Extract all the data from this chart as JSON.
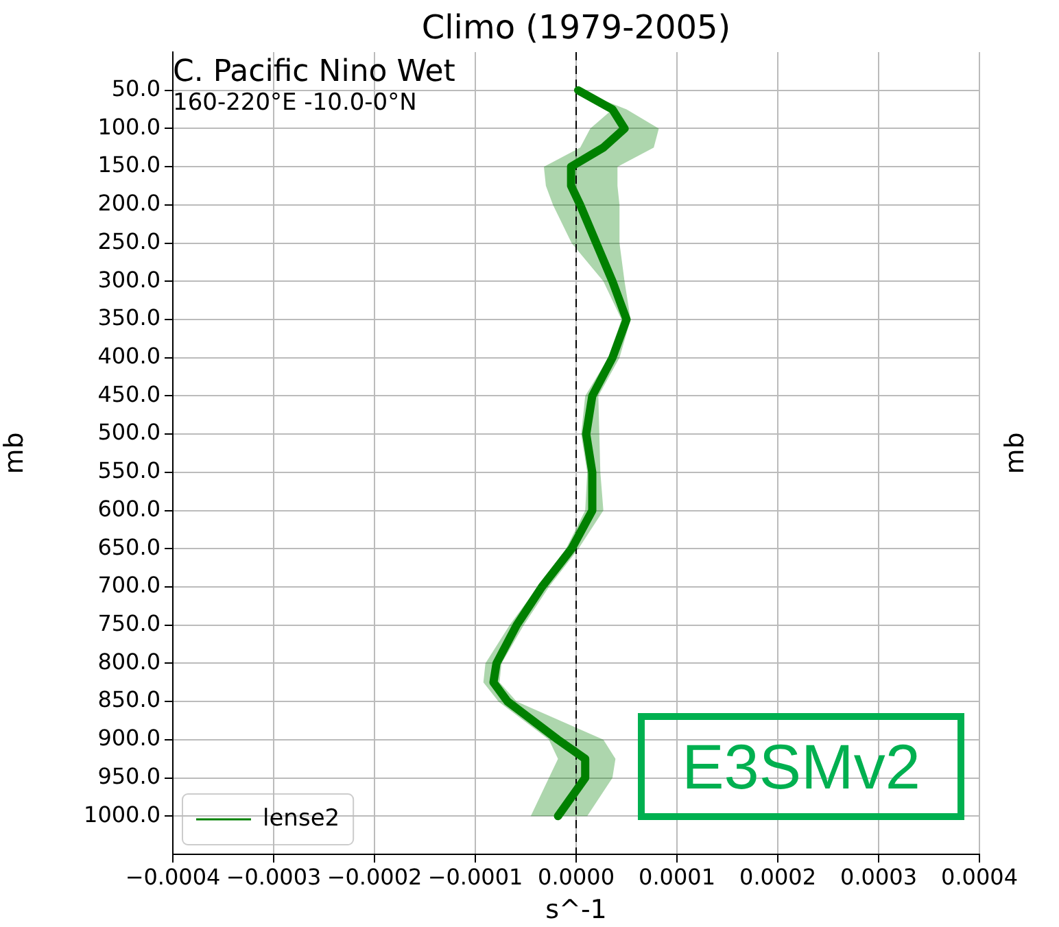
{
  "chart_data": {
    "type": "line",
    "title": "Climo (1979-2005)",
    "xlabel": "s^-1",
    "ylabel": "mb",
    "y2label": "mb",
    "annotations": [
      "C. Pacific Nino Wet",
      "160-220°E -10.0-0°N",
      "E3SMv2"
    ],
    "series": [
      {
        "name": "lense2",
        "color": "#008000",
        "x": [
          50,
          75,
          100,
          125,
          150,
          175,
          200,
          250,
          300,
          350,
          400,
          450,
          500,
          550,
          600,
          650,
          700,
          750,
          800,
          825,
          850,
          900,
          925,
          950,
          1000
        ],
        "values": [
          2e-06,
          3.6e-05,
          4.8e-05,
          2.7e-05,
          -5e-06,
          -5e-06,
          4e-06,
          2e-05,
          3.6e-05,
          5e-05,
          3.6e-05,
          1.6e-05,
          1e-05,
          1.6e-05,
          1.6e-05,
          -4.5e-06,
          -3.4e-05,
          -5.9e-05,
          -7.9e-05,
          -8.2e-05,
          -6.8e-05,
          -1.8e-05,
          9e-06,
          9e-06,
          -1.8e-05
        ],
        "lower": [
          2e-06,
          3.6e-05,
          1.4e-05,
          4e-06,
          -3.2e-05,
          -3e-05,
          -2.3e-05,
          -4.5e-06,
          2.7e-05,
          4.5e-05,
          3.2e-05,
          9e-06,
          5e-06,
          1.1e-05,
          9e-06,
          -1e-05,
          -3.8e-05,
          -6.6e-05,
          -9e-05,
          -9.2e-05,
          -7.7e-05,
          -2.7e-05,
          -1.8e-05,
          -2.7e-05,
          -4.5e-05
        ],
        "upper": [
          2e-06,
          5e-05,
          8.2e-05,
          7.7e-05,
          4.1e-05,
          4.1e-05,
          4.3e-05,
          4.3e-05,
          4.8e-05,
          5.4e-05,
          4.3e-05,
          2.2e-05,
          2.3e-05,
          2.4e-05,
          2.7e-05,
          2.3e-06,
          -2.7e-05,
          -5.2e-05,
          -7.4e-05,
          -7.6e-05,
          -5.9e-05,
          2.7e-05,
          3.9e-05,
          3.6e-05,
          1.1e-05
        ]
      }
    ],
    "xlim": [
      -0.0004,
      0.0004
    ],
    "xticks": [
      {
        "value": -0.0004,
        "label": "−0.0004"
      },
      {
        "value": -0.0003,
        "label": "−0.0003"
      },
      {
        "value": -0.0002,
        "label": "−0.0002"
      },
      {
        "value": -0.0001,
        "label": "−0.0001"
      },
      {
        "value": 0,
        "label": "0.0000"
      },
      {
        "value": 0.0001,
        "label": "0.0001"
      },
      {
        "value": 0.0002,
        "label": "0.0002"
      },
      {
        "value": 0.0003,
        "label": "0.0003"
      },
      {
        "value": 0.0004,
        "label": "0.0004"
      }
    ],
    "ylim": [
      1050,
      0
    ],
    "yticks": [
      {
        "value": 50,
        "label": "50.0"
      },
      {
        "value": 100,
        "label": "100.0"
      },
      {
        "value": 150,
        "label": "150.0"
      },
      {
        "value": 200,
        "label": "200.0"
      },
      {
        "value": 250,
        "label": "250.0"
      },
      {
        "value": 300,
        "label": "300.0"
      },
      {
        "value": 350,
        "label": "350.0"
      },
      {
        "value": 400,
        "label": "400.0"
      },
      {
        "value": 450,
        "label": "450.0"
      },
      {
        "value": 500,
        "label": "500.0"
      },
      {
        "value": 550,
        "label": "550.0"
      },
      {
        "value": 600,
        "label": "600.0"
      },
      {
        "value": 650,
        "label": "650.0"
      },
      {
        "value": 700,
        "label": "700.0"
      },
      {
        "value": 750,
        "label": "750.0"
      },
      {
        "value": 800,
        "label": "800.0"
      },
      {
        "value": 850,
        "label": "850.0"
      },
      {
        "value": 900,
        "label": "900.0"
      },
      {
        "value": 950,
        "label": "950.0"
      },
      {
        "value": 1000,
        "label": "1000.0"
      }
    ],
    "ref_lines": [
      {
        "axis": "x",
        "value": 0,
        "color": "#000000",
        "line_style": "dashed"
      }
    ],
    "orientation": "horizontal",
    "grid": true,
    "legend": "bottom left",
    "marker": "none",
    "line_style": "solid"
  }
}
